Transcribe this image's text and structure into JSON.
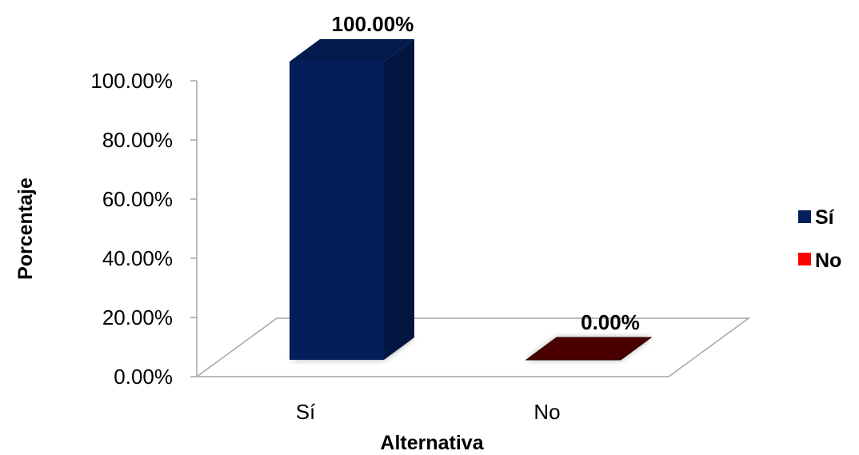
{
  "chart_data": {
    "type": "bar",
    "style": "3d-column",
    "categories": [
      "Sí",
      "No"
    ],
    "series": [
      {
        "name": "Sí",
        "values": [
          100,
          0
        ],
        "color": "#041e5b"
      },
      {
        "name": "No",
        "values": [
          0,
          0
        ],
        "color": "#ff0000"
      }
    ],
    "bar_colors": {
      "Sí": "#041e5b",
      "No": "#4a0000"
    },
    "data_labels": [
      "100.00%",
      "0.00%"
    ],
    "yticks": [
      "0.00%",
      "20.00%",
      "40.00%",
      "60.00%",
      "80.00%",
      "100.00%"
    ],
    "ylim": [
      0,
      100
    ],
    "xlabel": "Alternativa",
    "ylabel": "Porcentaje",
    "legend": {
      "position": "right",
      "entries": [
        "Sí",
        "No"
      ]
    },
    "grid": false
  }
}
